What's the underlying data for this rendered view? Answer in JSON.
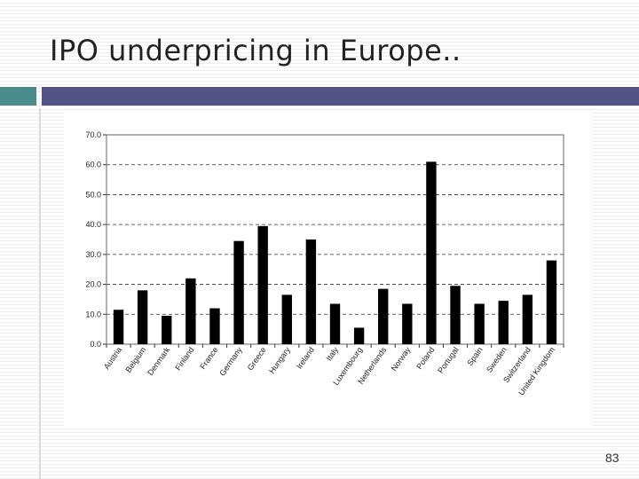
{
  "slide": {
    "title": "IPO underpricing in Europe..",
    "page_number": "83"
  },
  "colors": {
    "accent_block": "#4a8c8c",
    "rule_bar": "#525285",
    "bars": "#000000",
    "gridline": "#333333"
  },
  "chart_data": {
    "type": "bar",
    "categories": [
      "Austria",
      "Belgium",
      "Denmark",
      "Finland",
      "France",
      "Germany",
      "Greece",
      "Hungary",
      "Ireland",
      "Italy",
      "Luxembourg",
      "Netherlands",
      "Norway",
      "Poland",
      "Portugal",
      "Spain",
      "Sweden",
      "Switzerland",
      "United Kingdom"
    ],
    "values": [
      11.5,
      18.0,
      9.5,
      22.0,
      12.0,
      34.5,
      39.5,
      16.5,
      35.0,
      13.5,
      5.5,
      18.5,
      13.5,
      61.0,
      19.5,
      13.5,
      14.5,
      16.5,
      28.0
    ],
    "ylim": [
      0,
      70
    ],
    "yticks": [
      "0.0",
      "10.0",
      "20.0",
      "30.0",
      "40.0",
      "50.0",
      "60.0",
      "70.0"
    ],
    "grid": true,
    "legend": "none"
  }
}
